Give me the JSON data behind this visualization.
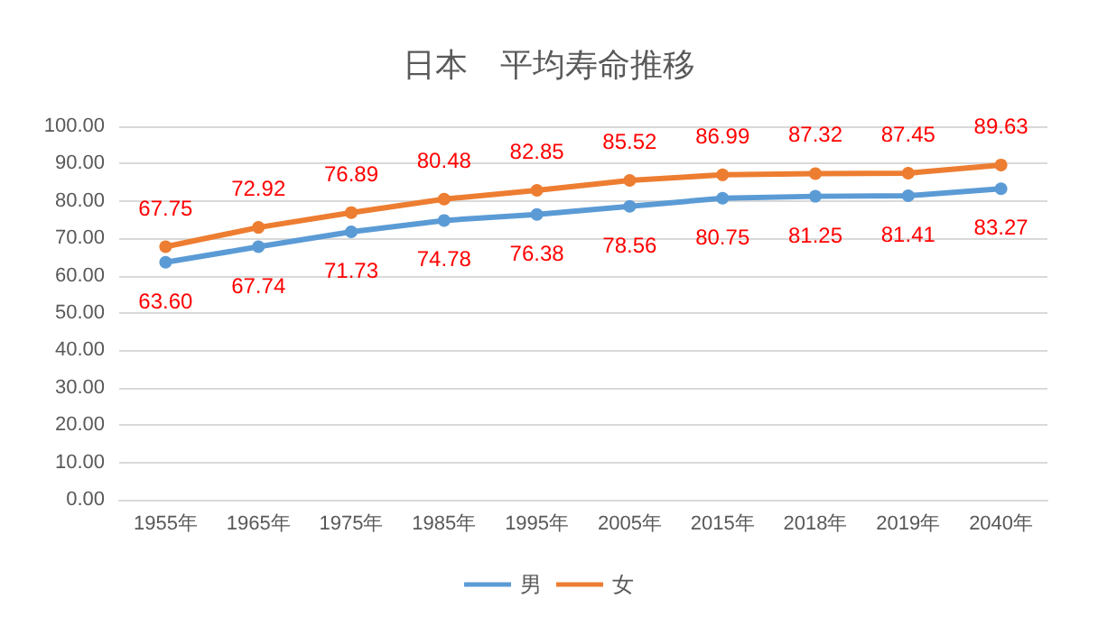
{
  "chart_data": {
    "type": "line",
    "title": "日本　平均寿命推移",
    "categories": [
      "1955年",
      "1965年",
      "1975年",
      "1985年",
      "1995年",
      "2005年",
      "2015年",
      "2018年",
      "2019年",
      "2040年"
    ],
    "series": [
      {
        "name": "男",
        "color": "#5b9bd5",
        "values": [
          63.6,
          67.74,
          71.73,
          74.78,
          76.38,
          78.56,
          80.75,
          81.25,
          81.41,
          83.27
        ],
        "value_labels": [
          "63.60",
          "67.74",
          "71.73",
          "74.78",
          "76.38",
          "78.56",
          "80.75",
          "81.25",
          "81.41",
          "83.27"
        ]
      },
      {
        "name": "女",
        "color": "#ed7d31",
        "values": [
          67.75,
          72.92,
          76.89,
          80.48,
          82.85,
          85.52,
          86.99,
          87.32,
          87.45,
          89.63
        ],
        "value_labels": [
          "67.75",
          "72.92",
          "76.89",
          "80.48",
          "82.85",
          "85.52",
          "86.99",
          "87.32",
          "87.45",
          "89.63"
        ]
      }
    ],
    "ylim": [
      0,
      100
    ],
    "yticks": [
      {
        "value": 0,
        "label": "0.00"
      },
      {
        "value": 10,
        "label": "10.00"
      },
      {
        "value": 20,
        "label": "20.00"
      },
      {
        "value": 30,
        "label": "30.00"
      },
      {
        "value": 40,
        "label": "40.00"
      },
      {
        "value": 50,
        "label": "50.00"
      },
      {
        "value": 60,
        "label": "60.00"
      },
      {
        "value": 70,
        "label": "70.00"
      },
      {
        "value": 80,
        "label": "80.00"
      },
      {
        "value": 90,
        "label": "90.00"
      },
      {
        "value": 100,
        "label": "100.00"
      }
    ],
    "grid": "y",
    "legend": "bottom",
    "marker": "circle",
    "line_style": "solid"
  }
}
